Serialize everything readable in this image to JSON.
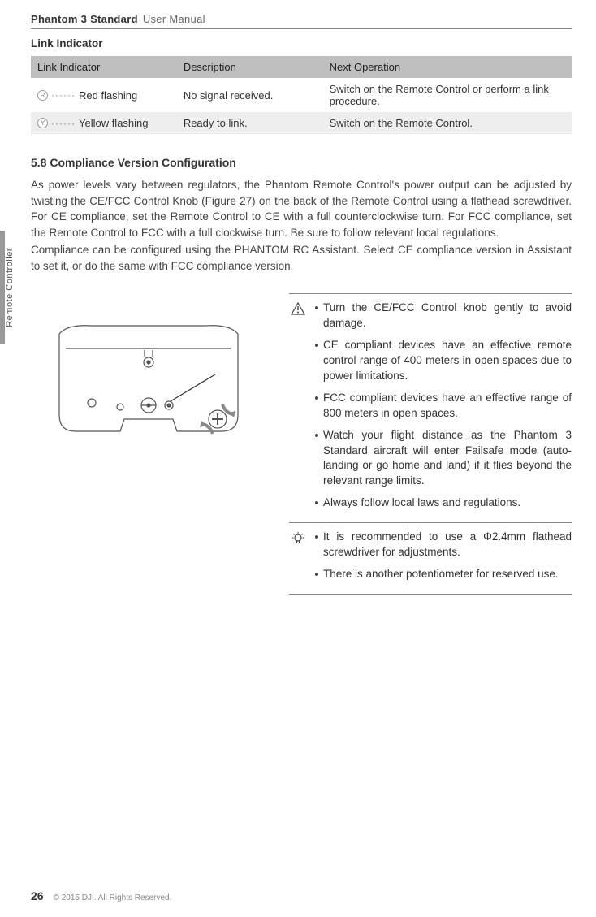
{
  "header": {
    "bold": "Phantom 3 Standard",
    "light": "User Manual"
  },
  "sidebar_label": "Remote Controller",
  "link_indicator": {
    "section_title": "Link Indicator",
    "columns": [
      "Link Indicator",
      "Description",
      "Next Operation"
    ],
    "rows": [
      {
        "led_letter": "R",
        "label": "Red flashing",
        "description": "No signal received.",
        "next": "Switch on the Remote Control or perform a link procedure.",
        "row_bg": "row-white"
      },
      {
        "led_letter": "Y",
        "label": "Yellow flashing",
        "description": "Ready to link.",
        "next": "Switch on the Remote Control.",
        "row_bg": "row-grey"
      }
    ]
  },
  "subsection_title": "5.8 Compliance Version Configuration",
  "paragraphs": [
    "As power levels vary between regulators, the Phantom Remote Control's power output can be adjusted by twisting the CE/FCC Control Knob (Figure 27) on the back of the Remote Control using a flathead screwdriver. For CE compliance, set the Remote Control to CE with a full counterclockwise turn. For FCC compliance, set the Remote Control to FCC with a full clockwise turn. Be sure to follow relevant local regulations.",
    "Compliance can be configured using the PHANTOM RC Assistant. Select CE compliance version in Assistant to set it, or do the same with FCC compliance version."
  ],
  "diagram": {
    "stroke": "#555555",
    "fill": "#ffffff",
    "accent": "#888888"
  },
  "notes": {
    "warning_items": [
      "Turn the CE/FCC Control knob gently to avoid damage.",
      "CE compliant devices have an effective remote control range of 400 meters in open spaces due to power limitations.",
      "FCC compliant devices have an effective range of 800 meters in open spaces.",
      "Watch your flight distance as the Phantom 3 Standard aircraft will enter Failsafe mode (auto-landing or go home and land) if it flies beyond the relevant range limits.",
      "Always follow local laws and regulations."
    ],
    "tip_items": [
      "It is recommended to use a Φ2.4mm flathead screwdriver for adjustments.",
      "There is another potentiometer for reserved use."
    ]
  },
  "footer": {
    "page": "26",
    "copyright": "© 2015 DJI. All Rights Reserved."
  }
}
